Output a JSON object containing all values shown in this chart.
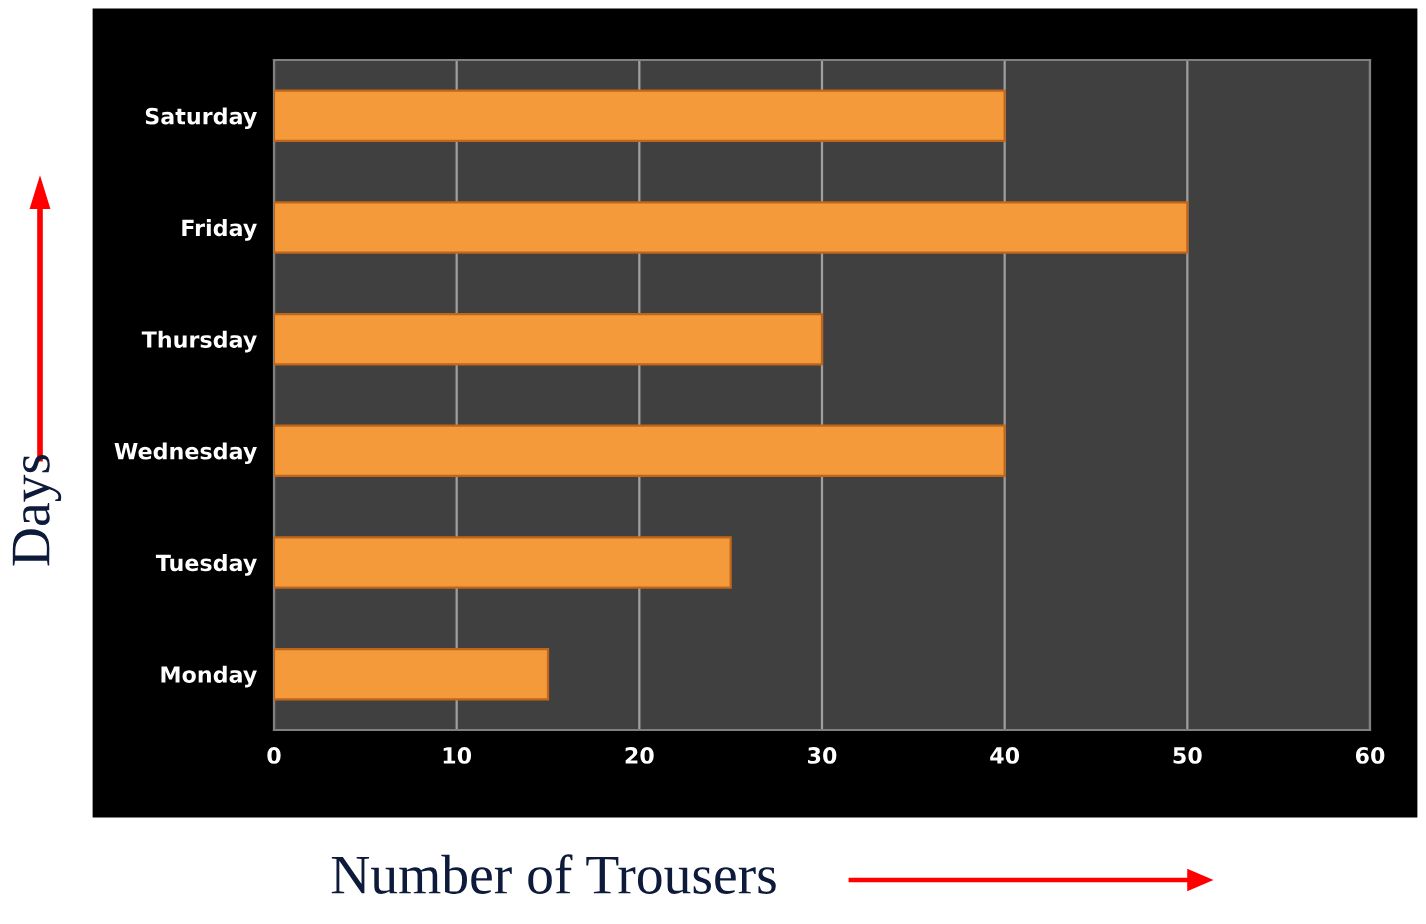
{
  "chart_data": {
    "type": "bar",
    "orientation": "horizontal",
    "xlabel": "Number of Trousers",
    "ylabel": "Days",
    "categories": [
      "Saturday",
      "Friday",
      "Thursday",
      "Wednesday",
      "Tuesday",
      "Monday"
    ],
    "values": [
      40,
      50,
      30,
      40,
      25,
      15
    ],
    "color": "#f59a3a",
    "xlim": [
      0,
      60
    ],
    "xticks": [
      0,
      10,
      20,
      30,
      40,
      50,
      60
    ],
    "grid": "x"
  }
}
